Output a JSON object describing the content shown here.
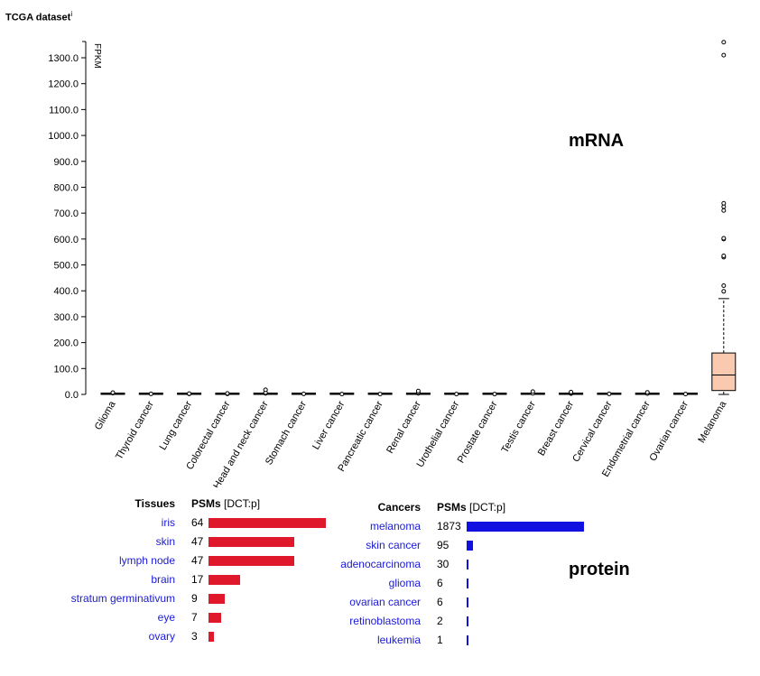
{
  "title": "TCGA dataset",
  "title_sup": "i",
  "mrna_label": "mRNA",
  "protein_label": "protein",
  "chart_data": {
    "type": "box",
    "ylabel": "FPKM",
    "ylim": [
      0,
      1350
    ],
    "yticks": [
      0,
      100,
      200,
      300,
      400,
      500,
      600,
      700,
      800,
      900,
      1000,
      1100,
      1200,
      1300
    ],
    "ytick_labels": [
      "0.0",
      "100.0",
      "200.0",
      "300.0",
      "400.0",
      "500.0",
      "600.0",
      "700.0",
      "800.0",
      "900.0",
      "1000.0",
      "1100.0",
      "1200.0",
      "1300.0"
    ],
    "categories": [
      "Glioma",
      "Thyroid cancer",
      "Lung cancer",
      "Colorectal cancer",
      "Head and neck cancer",
      "Stomach cancer",
      "Liver cancer",
      "Pancreatic cancer",
      "Renal cancer",
      "Urothelial cancer",
      "Prostate cancer",
      "Testis cancer",
      "Breast cancer",
      "Cervical cancer",
      "Endometrial cancer",
      "Ovarian cancer",
      "Melanoma"
    ],
    "boxes": [
      {
        "min": 0,
        "q1": 0,
        "median": 0,
        "q3": 1,
        "max": 3,
        "outliers": [
          5,
          7
        ]
      },
      {
        "min": 0,
        "q1": 0,
        "median": 0,
        "q3": 0.5,
        "max": 1,
        "outliers": [
          2
        ]
      },
      {
        "min": 0,
        "q1": 0,
        "median": 0,
        "q3": 0.5,
        "max": 1,
        "outliers": [
          2,
          3
        ]
      },
      {
        "min": 0,
        "q1": 0,
        "median": 0,
        "q3": 0.5,
        "max": 1,
        "outliers": [
          2,
          4
        ]
      },
      {
        "min": 0,
        "q1": 0,
        "median": 0,
        "q3": 1,
        "max": 2,
        "outliers": [
          4,
          7,
          18
        ]
      },
      {
        "min": 0,
        "q1": 0,
        "median": 0,
        "q3": 0.5,
        "max": 1,
        "outliers": [
          2
        ]
      },
      {
        "min": 0,
        "q1": 0,
        "median": 0,
        "q3": 0.5,
        "max": 1,
        "outliers": [
          1.5
        ]
      },
      {
        "min": 0,
        "q1": 0,
        "median": 0,
        "q3": 0.5,
        "max": 1,
        "outliers": [
          1.5
        ]
      },
      {
        "min": 0,
        "q1": 0,
        "median": 0,
        "q3": 1,
        "max": 2,
        "outliers": [
          4,
          8,
          13
        ]
      },
      {
        "min": 0,
        "q1": 0,
        "median": 0,
        "q3": 0.5,
        "max": 1,
        "outliers": [
          1.5
        ]
      },
      {
        "min": 0,
        "q1": 0,
        "median": 0,
        "q3": 0.5,
        "max": 1,
        "outliers": [
          1.5
        ]
      },
      {
        "min": 0,
        "q1": 0,
        "median": 0,
        "q3": 0.5,
        "max": 1,
        "outliers": [
          4,
          11
        ]
      },
      {
        "min": 0,
        "q1": 0,
        "median": 0,
        "q3": 1,
        "max": 2,
        "outliers": [
          3,
          6,
          9
        ]
      },
      {
        "min": 0,
        "q1": 0,
        "median": 0,
        "q3": 0.5,
        "max": 1,
        "outliers": [
          2
        ]
      },
      {
        "min": 0,
        "q1": 0,
        "median": 0,
        "q3": 0.5,
        "max": 1,
        "outliers": [
          3,
          8
        ]
      },
      {
        "min": 0,
        "q1": 0,
        "median": 0,
        "q3": 0.5,
        "max": 1,
        "outliers": [
          1.5
        ]
      },
      {
        "min": 0,
        "q1": 15,
        "median": 75,
        "q3": 160,
        "max": 370,
        "outliers": [
          398,
          420,
          530,
          535,
          600,
          603,
          710,
          725,
          738,
          1310,
          1360
        ]
      }
    ],
    "box_colors": {
      "default_fill": "#000000",
      "melanoma_fill": "#f9c9b0",
      "stroke": "#000000"
    }
  },
  "tissues": {
    "header_name": "Tissues",
    "header_value": "PSMs",
    "header_unit": "[DCT:p]",
    "bar_color": "#e0182c",
    "max": 64,
    "rows": [
      {
        "name": "iris",
        "value": 64
      },
      {
        "name": "skin",
        "value": 47
      },
      {
        "name": "lymph node",
        "value": 47
      },
      {
        "name": "brain",
        "value": 17
      },
      {
        "name": "stratum germinativum",
        "value": 9
      },
      {
        "name": "eye",
        "value": 7
      },
      {
        "name": "ovary",
        "value": 3
      }
    ]
  },
  "cancers": {
    "header_name": "Cancers",
    "header_value": "PSMs",
    "header_unit": "[DCT:p]",
    "bar_color": "#1010e0",
    "max": 1873,
    "rows": [
      {
        "name": "melanoma",
        "value": 1873
      },
      {
        "name": "skin cancer",
        "value": 95
      },
      {
        "name": "adenocarcinoma",
        "value": 30
      },
      {
        "name": "glioma",
        "value": 6
      },
      {
        "name": "ovarian cancer",
        "value": 6
      },
      {
        "name": "retinoblastoma",
        "value": 2
      },
      {
        "name": "leukemia",
        "value": 1
      }
    ]
  }
}
